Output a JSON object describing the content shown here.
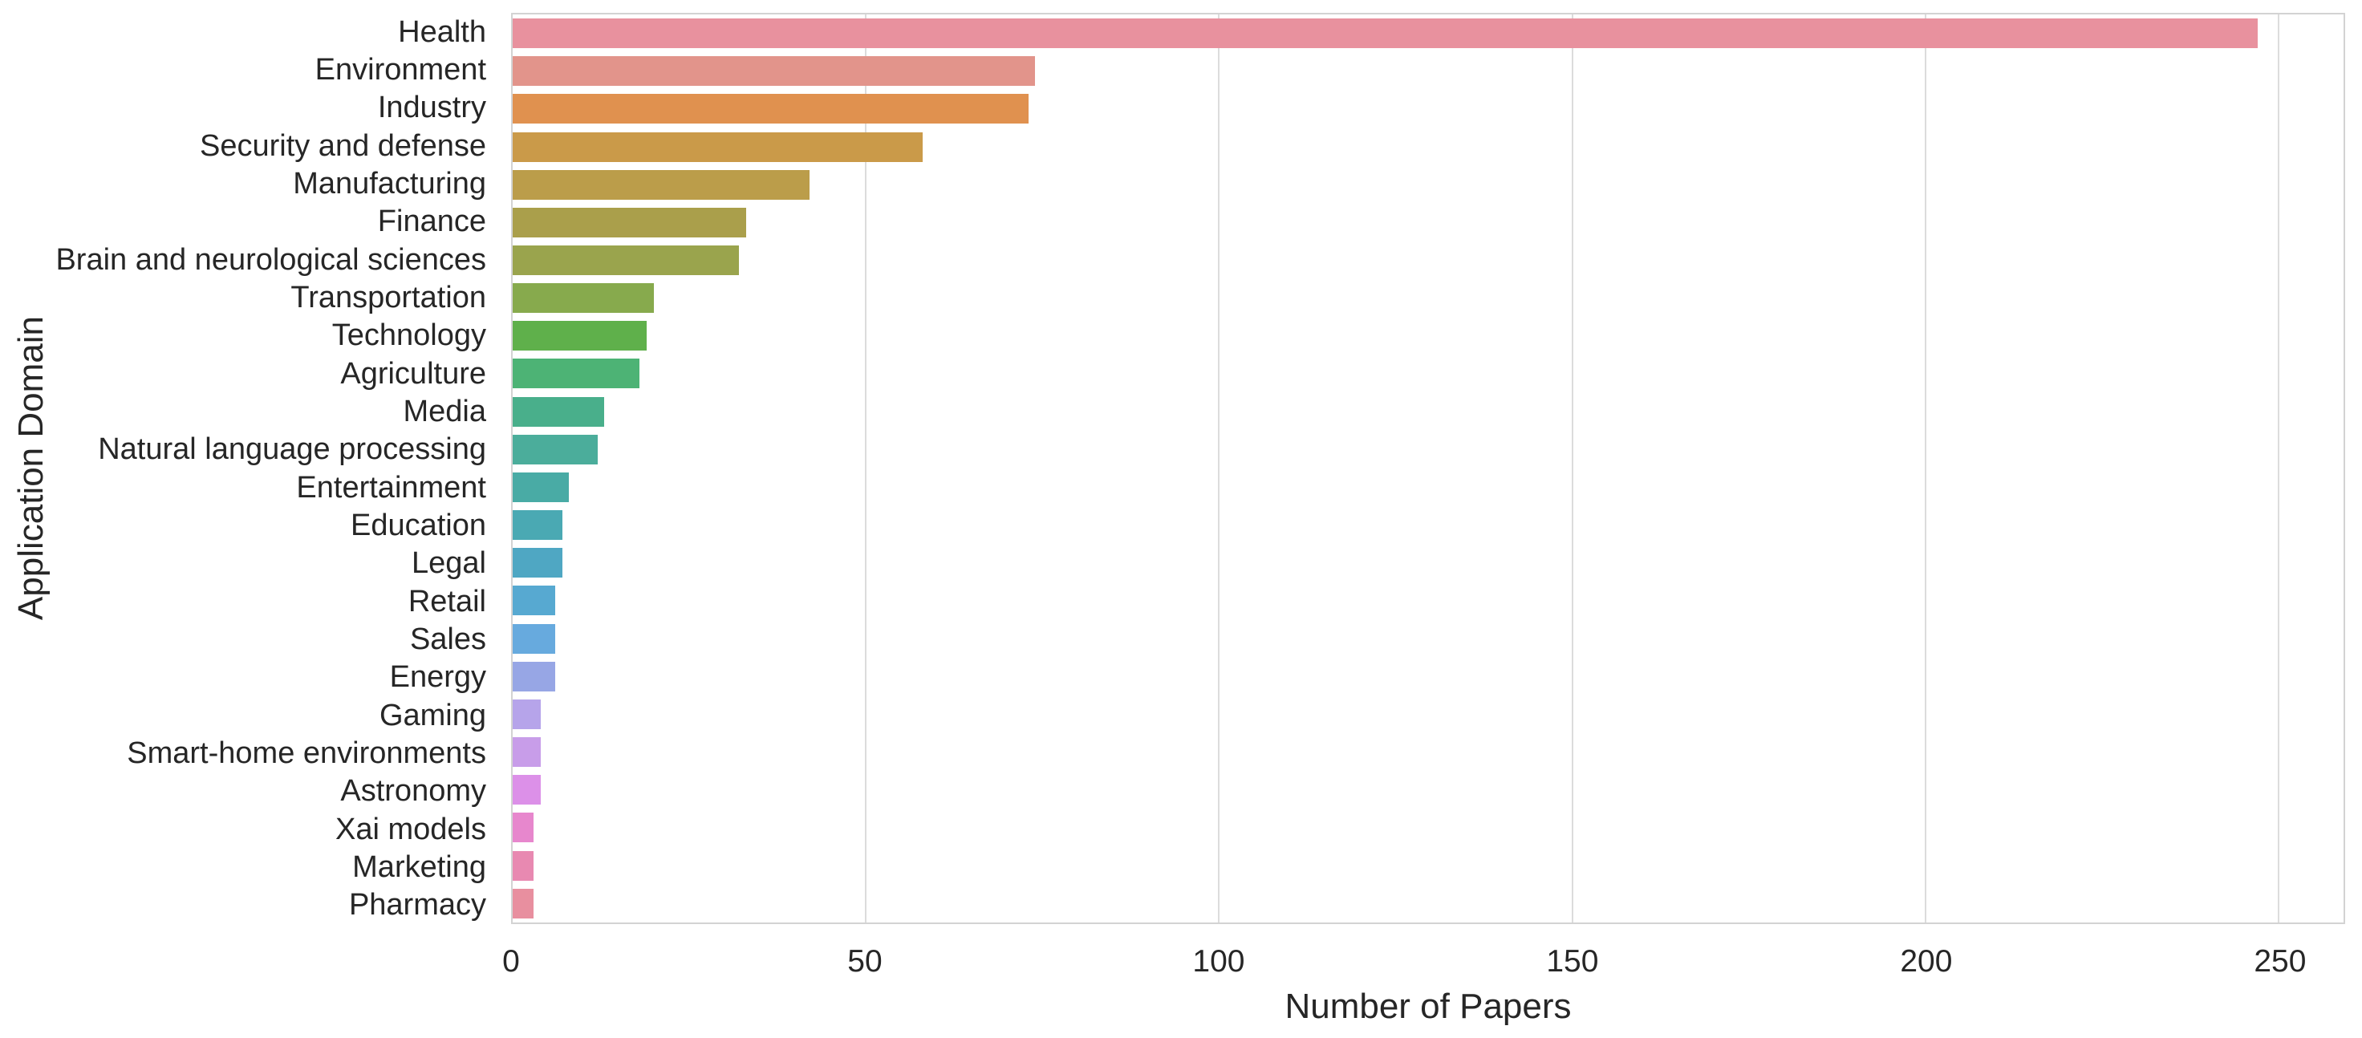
{
  "chart_data": {
    "type": "bar",
    "orientation": "horizontal",
    "title": "",
    "xlabel": "Number of Papers",
    "ylabel": "Application Domain",
    "xlim": [
      0,
      259.2
    ],
    "xticks": [
      0,
      50,
      100,
      150,
      200,
      250
    ],
    "grid": true,
    "legend": false,
    "categories": [
      "Health",
      "Environment",
      "Industry",
      "Security and defense",
      "Manufacturing",
      "Finance",
      "Brain and neurological sciences",
      "Transportation",
      "Technology",
      "Agriculture",
      "Media",
      "Natural language processing",
      "Entertainment",
      "Education",
      "Legal",
      "Retail",
      "Sales",
      "Energy",
      "Gaming",
      "Smart-home environments",
      "Astronomy",
      "Xai models",
      "Marketing",
      "Pharmacy"
    ],
    "values": [
      247,
      74,
      73,
      58,
      42,
      33,
      32,
      20,
      19,
      18,
      13,
      12,
      8,
      7,
      7,
      6,
      6,
      6,
      4,
      4,
      4,
      3,
      3,
      3
    ],
    "bar_colors": [
      "#e8919e",
      "#e2948b",
      "#e0914f",
      "#ca9a49",
      "#bb9d4a",
      "#aa9f4b",
      "#9aa44d",
      "#87aa4d",
      "#5fb04b",
      "#4db375",
      "#49af8b",
      "#4bad9b",
      "#49aba5",
      "#4aa9b3",
      "#4fa7c3",
      "#57a9d1",
      "#67aade",
      "#97a6e5",
      "#b6a4ea",
      "#c89de9",
      "#dc90e8",
      "#e787cd",
      "#e889b1",
      "#e88f9f"
    ]
  },
  "colors": {
    "background": "#ffffff",
    "grid": "#dcdcdc",
    "spine": "#d3d3d3",
    "text": "#262626"
  }
}
